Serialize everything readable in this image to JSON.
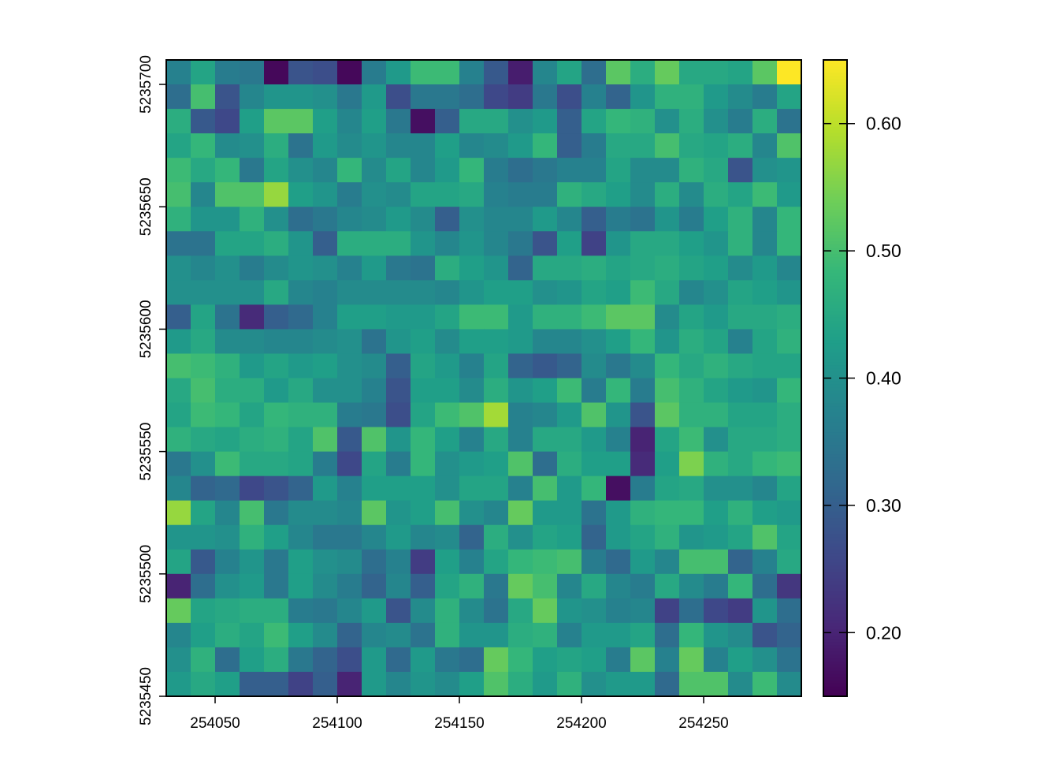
{
  "chart_data": {
    "type": "heatmap",
    "title": "",
    "xlabel": "",
    "ylabel": "",
    "xlim": [
      254030,
      254290
    ],
    "ylim": [
      5235450,
      5235710
    ],
    "grid": false,
    "x_ticks": [
      "254050",
      "254100",
      "254150",
      "254200",
      "254250"
    ],
    "y_ticks": [
      "5235450",
      "5235500",
      "5235550",
      "5235600",
      "5235650",
      "5235700"
    ],
    "colorbar": {
      "range": [
        0.15,
        0.65
      ],
      "ticks": [
        "0.20",
        "0.30",
        "0.40",
        "0.50",
        "0.60"
      ],
      "palette": [
        "#440154",
        "#482878",
        "#3e4989",
        "#31688e",
        "#26828e",
        "#1f9e89",
        "#35b779",
        "#6ece58",
        "#b5de2b",
        "#fde725"
      ]
    },
    "cell_size": 10,
    "grid_rows_north_to_south": [
      [
        0.37,
        0.44,
        0.36,
        0.35,
        0.16,
        0.28,
        0.27,
        0.16,
        0.36,
        0.42,
        0.49,
        0.49,
        0.37,
        0.29,
        0.19,
        0.38,
        0.44,
        0.33,
        0.52,
        0.46,
        0.53,
        0.45,
        0.45,
        0.44,
        0.52,
        0.65
      ],
      [
        0.33,
        0.5,
        0.28,
        0.38,
        0.41,
        0.41,
        0.4,
        0.35,
        0.42,
        0.27,
        0.35,
        0.35,
        0.33,
        0.26,
        0.24,
        0.35,
        0.27,
        0.37,
        0.31,
        0.41,
        0.47,
        0.47,
        0.42,
        0.39,
        0.36,
        0.44
      ],
      [
        0.46,
        0.29,
        0.26,
        0.43,
        0.52,
        0.52,
        0.43,
        0.38,
        0.43,
        0.35,
        0.17,
        0.3,
        0.45,
        0.45,
        0.4,
        0.42,
        0.3,
        0.44,
        0.48,
        0.47,
        0.4,
        0.46,
        0.4,
        0.36,
        0.46,
        0.34
      ],
      [
        0.44,
        0.48,
        0.39,
        0.4,
        0.46,
        0.34,
        0.42,
        0.39,
        0.41,
        0.38,
        0.38,
        0.43,
        0.38,
        0.39,
        0.42,
        0.48,
        0.3,
        0.36,
        0.45,
        0.45,
        0.5,
        0.45,
        0.44,
        0.46,
        0.38,
        0.51
      ],
      [
        0.49,
        0.45,
        0.48,
        0.35,
        0.44,
        0.4,
        0.38,
        0.48,
        0.39,
        0.44,
        0.38,
        0.42,
        0.48,
        0.36,
        0.33,
        0.35,
        0.37,
        0.37,
        0.44,
        0.39,
        0.39,
        0.47,
        0.45,
        0.28,
        0.4,
        0.41
      ],
      [
        0.5,
        0.38,
        0.51,
        0.51,
        0.57,
        0.43,
        0.41,
        0.36,
        0.4,
        0.39,
        0.44,
        0.44,
        0.45,
        0.37,
        0.36,
        0.36,
        0.47,
        0.45,
        0.43,
        0.39,
        0.46,
        0.39,
        0.46,
        0.44,
        0.49,
        0.42
      ],
      [
        0.47,
        0.41,
        0.41,
        0.47,
        0.4,
        0.33,
        0.35,
        0.38,
        0.39,
        0.42,
        0.39,
        0.3,
        0.4,
        0.38,
        0.38,
        0.42,
        0.38,
        0.3,
        0.36,
        0.34,
        0.41,
        0.36,
        0.43,
        0.47,
        0.38,
        0.48
      ],
      [
        0.34,
        0.34,
        0.44,
        0.44,
        0.46,
        0.41,
        0.3,
        0.46,
        0.46,
        0.46,
        0.41,
        0.38,
        0.41,
        0.38,
        0.35,
        0.28,
        0.43,
        0.25,
        0.41,
        0.45,
        0.45,
        0.43,
        0.41,
        0.47,
        0.38,
        0.48
      ],
      [
        0.4,
        0.38,
        0.4,
        0.36,
        0.39,
        0.41,
        0.4,
        0.37,
        0.42,
        0.35,
        0.34,
        0.46,
        0.43,
        0.41,
        0.31,
        0.45,
        0.45,
        0.46,
        0.44,
        0.45,
        0.46,
        0.44,
        0.43,
        0.39,
        0.42,
        0.38
      ],
      [
        0.4,
        0.4,
        0.4,
        0.4,
        0.45,
        0.38,
        0.37,
        0.39,
        0.39,
        0.39,
        0.39,
        0.38,
        0.41,
        0.43,
        0.43,
        0.4,
        0.41,
        0.44,
        0.43,
        0.49,
        0.45,
        0.38,
        0.4,
        0.44,
        0.43,
        0.41
      ],
      [
        0.3,
        0.44,
        0.34,
        0.21,
        0.3,
        0.32,
        0.37,
        0.43,
        0.43,
        0.42,
        0.42,
        0.44,
        0.49,
        0.49,
        0.42,
        0.47,
        0.47,
        0.49,
        0.52,
        0.52,
        0.39,
        0.44,
        0.42,
        0.45,
        0.45,
        0.46
      ],
      [
        0.42,
        0.45,
        0.39,
        0.39,
        0.38,
        0.38,
        0.39,
        0.4,
        0.34,
        0.41,
        0.43,
        0.39,
        0.43,
        0.43,
        0.42,
        0.38,
        0.38,
        0.4,
        0.43,
        0.48,
        0.41,
        0.46,
        0.44,
        0.37,
        0.44,
        0.47
      ],
      [
        0.5,
        0.49,
        0.47,
        0.42,
        0.44,
        0.42,
        0.43,
        0.4,
        0.39,
        0.3,
        0.44,
        0.42,
        0.37,
        0.44,
        0.31,
        0.29,
        0.31,
        0.39,
        0.35,
        0.39,
        0.48,
        0.45,
        0.47,
        0.45,
        0.44,
        0.44
      ],
      [
        0.45,
        0.5,
        0.46,
        0.46,
        0.42,
        0.45,
        0.4,
        0.4,
        0.37,
        0.28,
        0.43,
        0.43,
        0.39,
        0.46,
        0.41,
        0.43,
        0.49,
        0.36,
        0.48,
        0.36,
        0.5,
        0.47,
        0.44,
        0.42,
        0.41,
        0.48
      ],
      [
        0.44,
        0.49,
        0.48,
        0.44,
        0.48,
        0.47,
        0.47,
        0.36,
        0.35,
        0.27,
        0.44,
        0.49,
        0.51,
        0.58,
        0.37,
        0.38,
        0.42,
        0.51,
        0.41,
        0.28,
        0.52,
        0.47,
        0.47,
        0.44,
        0.44,
        0.46
      ],
      [
        0.47,
        0.45,
        0.44,
        0.46,
        0.47,
        0.44,
        0.51,
        0.29,
        0.51,
        0.41,
        0.48,
        0.43,
        0.37,
        0.45,
        0.37,
        0.45,
        0.45,
        0.42,
        0.37,
        0.2,
        0.44,
        0.49,
        0.4,
        0.45,
        0.45,
        0.46
      ],
      [
        0.35,
        0.4,
        0.49,
        0.45,
        0.45,
        0.44,
        0.36,
        0.26,
        0.44,
        0.36,
        0.48,
        0.4,
        0.42,
        0.43,
        0.51,
        0.33,
        0.46,
        0.43,
        0.43,
        0.21,
        0.43,
        0.55,
        0.47,
        0.45,
        0.48,
        0.49
      ],
      [
        0.38,
        0.31,
        0.32,
        0.26,
        0.28,
        0.31,
        0.42,
        0.37,
        0.43,
        0.43,
        0.43,
        0.4,
        0.44,
        0.44,
        0.37,
        0.5,
        0.42,
        0.48,
        0.17,
        0.36,
        0.44,
        0.45,
        0.4,
        0.4,
        0.38,
        0.44
      ],
      [
        0.57,
        0.44,
        0.38,
        0.5,
        0.35,
        0.39,
        0.39,
        0.38,
        0.52,
        0.41,
        0.43,
        0.5,
        0.4,
        0.38,
        0.53,
        0.42,
        0.42,
        0.34,
        0.42,
        0.47,
        0.48,
        0.48,
        0.43,
        0.47,
        0.43,
        0.42
      ],
      [
        0.41,
        0.41,
        0.4,
        0.47,
        0.43,
        0.38,
        0.35,
        0.35,
        0.38,
        0.42,
        0.38,
        0.39,
        0.31,
        0.46,
        0.4,
        0.44,
        0.43,
        0.31,
        0.42,
        0.44,
        0.47,
        0.41,
        0.42,
        0.44,
        0.51,
        0.44
      ],
      [
        0.44,
        0.29,
        0.37,
        0.41,
        0.35,
        0.43,
        0.4,
        0.39,
        0.33,
        0.37,
        0.24,
        0.43,
        0.37,
        0.44,
        0.48,
        0.49,
        0.5,
        0.36,
        0.32,
        0.42,
        0.38,
        0.5,
        0.5,
        0.31,
        0.37,
        0.45
      ],
      [
        0.2,
        0.33,
        0.4,
        0.42,
        0.35,
        0.43,
        0.39,
        0.36,
        0.31,
        0.38,
        0.3,
        0.44,
        0.47,
        0.35,
        0.53,
        0.5,
        0.38,
        0.45,
        0.38,
        0.36,
        0.45,
        0.39,
        0.36,
        0.48,
        0.33,
        0.23
      ],
      [
        0.53,
        0.44,
        0.45,
        0.46,
        0.46,
        0.36,
        0.35,
        0.38,
        0.42,
        0.28,
        0.39,
        0.47,
        0.39,
        0.34,
        0.45,
        0.53,
        0.41,
        0.4,
        0.37,
        0.38,
        0.25,
        0.33,
        0.26,
        0.24,
        0.41,
        0.33
      ],
      [
        0.38,
        0.43,
        0.46,
        0.44,
        0.49,
        0.43,
        0.39,
        0.31,
        0.38,
        0.39,
        0.34,
        0.47,
        0.41,
        0.41,
        0.46,
        0.47,
        0.37,
        0.42,
        0.42,
        0.44,
        0.33,
        0.48,
        0.41,
        0.39,
        0.28,
        0.31
      ],
      [
        0.4,
        0.47,
        0.33,
        0.43,
        0.46,
        0.35,
        0.31,
        0.27,
        0.42,
        0.32,
        0.42,
        0.35,
        0.33,
        0.53,
        0.48,
        0.43,
        0.44,
        0.43,
        0.36,
        0.52,
        0.37,
        0.53,
        0.37,
        0.43,
        0.4,
        0.34
      ],
      [
        0.42,
        0.45,
        0.43,
        0.3,
        0.3,
        0.25,
        0.3,
        0.2,
        0.42,
        0.38,
        0.41,
        0.39,
        0.43,
        0.51,
        0.46,
        0.42,
        0.47,
        0.4,
        0.42,
        0.42,
        0.32,
        0.51,
        0.51,
        0.39,
        0.49,
        0.39
      ]
    ]
  }
}
